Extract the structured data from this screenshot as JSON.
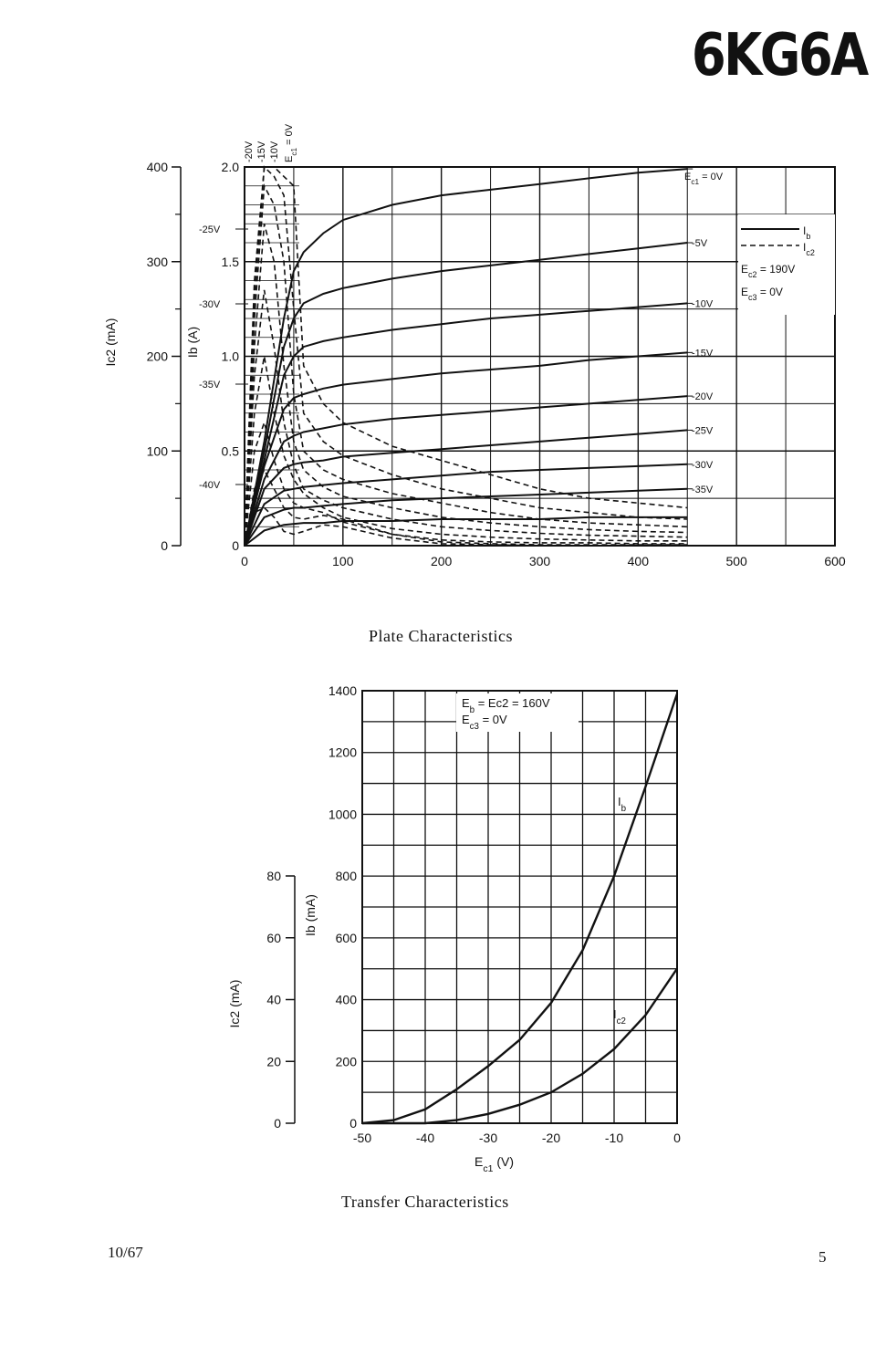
{
  "page": {
    "title": "6KG6A",
    "caption_plate": "Plate Characteristics",
    "caption_transfer": "Transfer Characteristics",
    "footer_date": "10/67",
    "footer_page": "5"
  },
  "chart_data": [
    {
      "type": "line",
      "title": "Plate Characteristics",
      "xlabel": "",
      "x_ticks": [
        "0",
        "100",
        "200",
        "300",
        "400",
        "500",
        "600"
      ],
      "xlim": [
        0,
        600
      ],
      "ylabel_left": "Ic2 (mA)",
      "y_left_ticks": [
        "0",
        "100",
        "200",
        "300",
        "400"
      ],
      "ylim_left": [
        0,
        400
      ],
      "ylabel_right": "Ib (A)",
      "y_right_ticks": [
        "0",
        "0.5",
        "1.0",
        "1.5",
        "2.0"
      ],
      "ylim_right": [
        0,
        2.0
      ],
      "grid": true,
      "legend": [
        "Ib",
        "Ic2"
      ],
      "conditions": [
        "Ec2 = 190V",
        "Ec3 = 0V"
      ],
      "ib_series": [
        {
          "name": "Ec1 = 0V",
          "x": [
            0,
            20,
            40,
            50,
            60,
            80,
            100,
            150,
            200,
            250,
            300,
            350,
            400,
            450
          ],
          "y": [
            0,
            0.55,
            1.2,
            1.45,
            1.55,
            1.65,
            1.72,
            1.8,
            1.85,
            1.88,
            1.91,
            1.94,
            1.97,
            1.99
          ]
        },
        {
          "name": "-5V",
          "x": [
            0,
            20,
            40,
            50,
            60,
            80,
            100,
            150,
            200,
            250,
            300,
            350,
            400,
            450
          ],
          "y": [
            0,
            0.5,
            1.05,
            1.2,
            1.28,
            1.33,
            1.36,
            1.41,
            1.45,
            1.48,
            1.51,
            1.54,
            1.57,
            1.6
          ]
        },
        {
          "name": "-10V",
          "x": [
            0,
            20,
            40,
            50,
            60,
            80,
            100,
            150,
            200,
            250,
            300,
            350,
            400,
            450
          ],
          "y": [
            0,
            0.45,
            0.9,
            1.0,
            1.05,
            1.08,
            1.1,
            1.14,
            1.17,
            1.2,
            1.22,
            1.24,
            1.26,
            1.28
          ]
        },
        {
          "name": "-15V",
          "x": [
            0,
            20,
            40,
            50,
            60,
            80,
            100,
            150,
            200,
            250,
            300,
            350,
            400,
            450
          ],
          "y": [
            0,
            0.42,
            0.72,
            0.78,
            0.8,
            0.83,
            0.85,
            0.88,
            0.91,
            0.93,
            0.95,
            0.98,
            1.0,
            1.02
          ]
        },
        {
          "name": "-20V",
          "x": [
            0,
            20,
            40,
            50,
            60,
            80,
            100,
            150,
            200,
            250,
            300,
            350,
            400,
            450
          ],
          "y": [
            0,
            0.35,
            0.55,
            0.58,
            0.6,
            0.62,
            0.64,
            0.67,
            0.69,
            0.71,
            0.73,
            0.75,
            0.77,
            0.79
          ]
        },
        {
          "name": "-25V",
          "x": [
            0,
            20,
            40,
            50,
            60,
            80,
            100,
            150,
            200,
            250,
            300,
            350,
            400,
            450
          ],
          "y": [
            0,
            0.3,
            0.41,
            0.43,
            0.44,
            0.45,
            0.47,
            0.49,
            0.51,
            0.53,
            0.55,
            0.57,
            0.59,
            0.61
          ]
        },
        {
          "name": "-30V",
          "x": [
            0,
            20,
            40,
            50,
            60,
            80,
            100,
            150,
            200,
            250,
            300,
            350,
            400,
            450
          ],
          "y": [
            0,
            0.22,
            0.29,
            0.3,
            0.31,
            0.32,
            0.33,
            0.35,
            0.37,
            0.39,
            0.4,
            0.41,
            0.42,
            0.43
          ]
        },
        {
          "name": "-35V",
          "x": [
            0,
            20,
            40,
            50,
            60,
            80,
            100,
            150,
            200,
            250,
            300,
            350,
            400,
            450
          ],
          "y": [
            0,
            0.15,
            0.19,
            0.2,
            0.2,
            0.21,
            0.22,
            0.24,
            0.25,
            0.26,
            0.27,
            0.28,
            0.29,
            0.3
          ]
        },
        {
          "name": "-40V",
          "x": [
            0,
            20,
            40,
            60,
            80,
            100,
            150,
            200,
            250,
            300,
            350,
            400,
            450
          ],
          "y": [
            0,
            0.08,
            0.11,
            0.12,
            0.12,
            0.13,
            0.13,
            0.14,
            0.14,
            0.14,
            0.15,
            0.15,
            0.15
          ]
        }
      ],
      "ic2_series": [
        {
          "name": "Ec1 = 0V",
          "x": [
            0,
            10,
            20,
            30,
            40,
            50,
            60,
            80,
            100,
            150,
            200,
            250,
            300,
            350,
            400,
            450
          ],
          "y": [
            0,
            280,
            400,
            400,
            390,
            380,
            190,
            150,
            130,
            105,
            90,
            75,
            60,
            50,
            45,
            40
          ]
        },
        {
          "name": "-5V",
          "x": [
            0,
            10,
            20,
            30,
            40,
            50,
            60,
            80,
            100,
            150,
            200,
            250,
            300,
            350,
            400,
            450
          ],
          "y": [
            0,
            260,
            400,
            390,
            370,
            250,
            140,
            110,
            95,
            75,
            60,
            50,
            40,
            35,
            30,
            28
          ]
        },
        {
          "name": "-10V",
          "x": [
            0,
            10,
            20,
            30,
            40,
            50,
            60,
            80,
            100,
            150,
            200,
            250,
            300,
            350,
            400,
            450
          ],
          "y": [
            0,
            240,
            380,
            360,
            300,
            160,
            100,
            80,
            70,
            55,
            45,
            35,
            28,
            24,
            22,
            20
          ]
        },
        {
          "name": "-15V",
          "x": [
            0,
            10,
            20,
            30,
            40,
            50,
            60,
            80,
            100,
            150,
            200,
            250,
            300,
            350,
            400,
            450
          ],
          "y": [
            0,
            210,
            340,
            300,
            190,
            110,
            80,
            62,
            52,
            40,
            30,
            24,
            20,
            17,
            15,
            14
          ]
        },
        {
          "name": "-20V",
          "x": [
            0,
            10,
            20,
            30,
            40,
            50,
            60,
            80,
            100,
            150,
            200,
            250,
            300,
            350,
            400,
            450
          ],
          "y": [
            0,
            180,
            270,
            210,
            130,
            85,
            60,
            48,
            40,
            28,
            20,
            16,
            13,
            11,
            10,
            9
          ]
        },
        {
          "name": "-25V",
          "x": [
            0,
            10,
            20,
            30,
            40,
            50,
            60,
            80,
            100,
            150,
            200,
            250,
            300,
            350,
            400,
            450
          ],
          "y": [
            0,
            140,
            200,
            140,
            95,
            70,
            55,
            40,
            30,
            18,
            12,
            9,
            7,
            6,
            5,
            5
          ]
        },
        {
          "name": "-30V",
          "x": [
            0,
            10,
            20,
            30,
            40,
            50,
            60,
            80,
            100,
            150,
            200,
            250,
            300,
            350,
            400,
            450
          ],
          "y": [
            0,
            100,
            130,
            90,
            60,
            45,
            40,
            35,
            25,
            12,
            6,
            4,
            3,
            3,
            2,
            2
          ]
        },
        {
          "name": "-35V",
          "x": [
            0,
            10,
            20,
            30,
            40,
            50,
            60,
            80,
            100,
            150,
            200,
            250,
            300,
            350,
            400,
            450
          ],
          "y": [
            0,
            60,
            80,
            60,
            40,
            30,
            28,
            32,
            28,
            12,
            4,
            2,
            1,
            1,
            1,
            1
          ]
        },
        {
          "name": "-40V",
          "x": [
            0,
            10,
            20,
            30,
            40,
            50,
            60,
            80,
            100,
            150,
            200,
            250,
            300,
            350,
            400,
            450
          ],
          "y": [
            0,
            35,
            40,
            30,
            15,
            12,
            15,
            22,
            20,
            8,
            2,
            1,
            0,
            0,
            0,
            0
          ]
        }
      ],
      "right_labels": [
        "Ec1 = 0V",
        "-5V",
        "-10V",
        "-15V",
        "-20V",
        "-25V",
        "-30V",
        "-35V"
      ],
      "left_labels": [
        "-25V",
        "-30V",
        "-35V",
        "-40V"
      ],
      "top_labels": [
        "-20V",
        "-15V",
        "-10V",
        "Ec1 = 0V"
      ]
    },
    {
      "type": "line",
      "title": "Transfer Characteristics",
      "xlabel": "Ec1 (V)",
      "x_ticks": [
        "-50",
        "-40",
        "-30",
        "-20",
        "-10",
        "0"
      ],
      "xlim": [
        -50,
        0
      ],
      "ylabel_right": "Ib (mA)",
      "y_ib_ticks": [
        "0",
        "200",
        "400",
        "600",
        "800",
        "1000",
        "1200",
        "1400"
      ],
      "ylim_ib": [
        0,
        1400
      ],
      "ylabel_left": "Ic2 (mA)",
      "y_ic2_ticks": [
        "0",
        "20",
        "40",
        "60",
        "80"
      ],
      "ylim_ic2": [
        0,
        80
      ],
      "grid": true,
      "conditions": [
        "Eb = Ec2 = 160V",
        "Ec3 = 0V"
      ],
      "series": [
        {
          "name": "Ib",
          "x": [
            -50,
            -45,
            -40,
            -35,
            -30,
            -25,
            -20,
            -15,
            -10,
            -5,
            0
          ],
          "y": [
            0,
            10,
            45,
            110,
            185,
            270,
            390,
            560,
            800,
            1090,
            1390
          ]
        },
        {
          "name": "Ic2",
          "x": [
            -50,
            -45,
            -40,
            -35,
            -30,
            -25,
            -20,
            -15,
            -10,
            -5,
            0
          ],
          "y": [
            0,
            0,
            0,
            1,
            3,
            6,
            10,
            16,
            24,
            35,
            50
          ]
        }
      ]
    }
  ]
}
